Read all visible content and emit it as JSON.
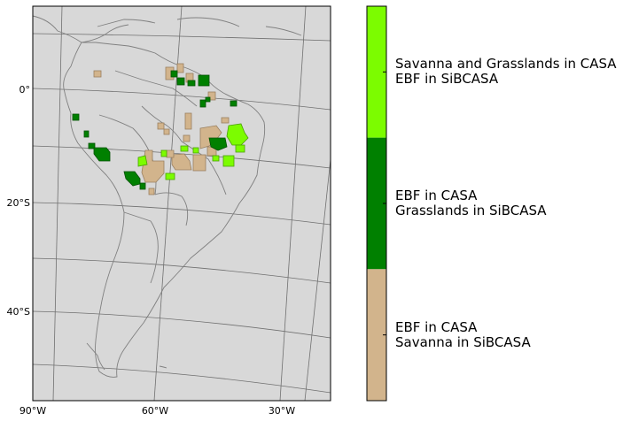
{
  "map": {
    "lat_labels": [
      {
        "lat": 0,
        "label": "0°"
      },
      {
        "lat": -20,
        "label": "20°S"
      },
      {
        "lat": -40,
        "label": "40°S"
      }
    ],
    "lon_labels": [
      {
        "lon": -90,
        "label": "90°W"
      },
      {
        "lon": -60,
        "label": "60°W"
      },
      {
        "lon": -30,
        "label": "30°W"
      }
    ],
    "background_color": "#d8d8d8",
    "coastline_color": "#808080",
    "graticule_color": "#707070"
  },
  "legend": {
    "items": [
      {
        "line1": "Savanna and Grasslands in CASA",
        "line2": "EBF in SiBCASA",
        "color": "#7cfc00"
      },
      {
        "line1": "EBF in CASA",
        "line2": "Grasslands in SiBCASA",
        "color": "#008000"
      },
      {
        "line1": "EBF in CASA",
        "line2": "Savanna in SiBCASA",
        "color": "#d2b48c"
      }
    ]
  }
}
